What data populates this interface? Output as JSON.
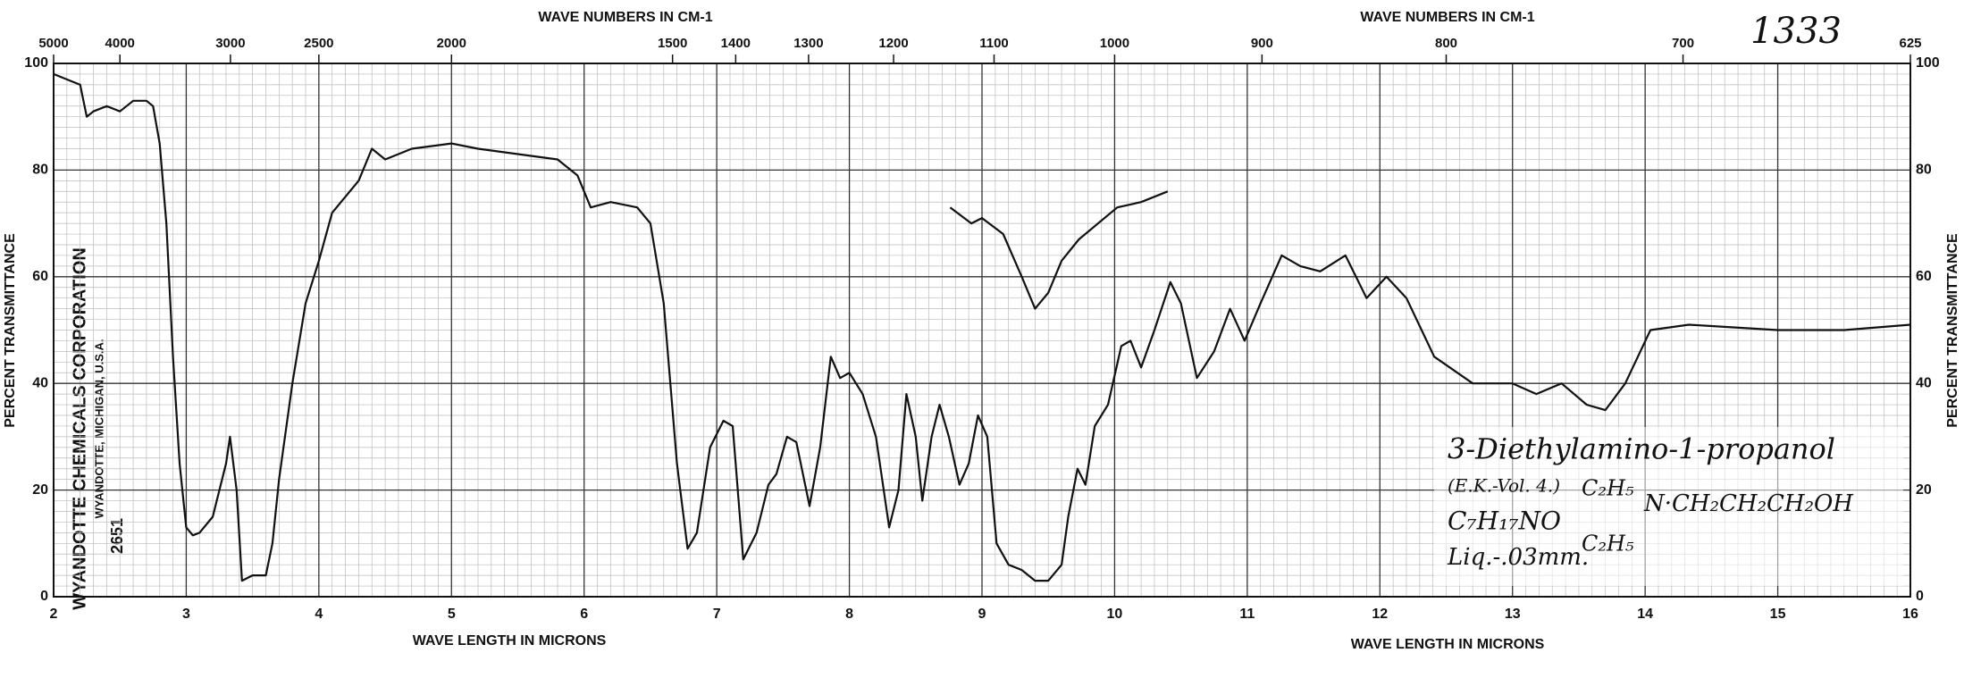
{
  "chart_data": {
    "type": "line",
    "top_axis_label": "WAVE NUMBERS IN CM-1",
    "top_axis_label_2": "WAVE NUMBERS IN CM-1",
    "x_axis_label": "WAVE LENGTH IN MICRONS",
    "x_axis_label_2": "WAVE LENGTH IN MICRONS",
    "y_axis_label": "PERCENT TRANSMITTANCE",
    "y2_axis_label": "PERCENT TRANSMITTANCE",
    "spectrum_number": "1333",
    "compound": "3-Diethylamino-1-propanol",
    "source": "(E.K.-Vol. 4.)",
    "formula": "C₇H₁₇NO",
    "sample": "Liq.-.03mm.",
    "group_1": "C₂H₅",
    "group_2": "C₂H₅",
    "chain": "N·CH₂CH₂CH₂OH",
    "company": "WYANDOTTE CHEMICALS CORPORATION",
    "company_location": "WYANDOTTE, MICHIGAN, U.S.A.",
    "catalog_number": "2651",
    "xlim": [
      2,
      16
    ],
    "xticks": [
      2,
      3,
      4,
      5,
      6,
      7,
      8,
      9,
      10,
      11,
      12,
      13,
      14,
      15,
      16
    ],
    "x2ticks": [
      5000,
      4000,
      3000,
      2500,
      2000,
      1500,
      1400,
      1300,
      1200,
      1100,
      1000,
      900,
      800,
      700,
      625
    ],
    "ylim": [
      0,
      100
    ],
    "yticks": [
      0,
      20,
      40,
      60,
      80,
      100
    ],
    "grid": true,
    "series": [
      {
        "color": "#111111",
        "x": [
          2.0,
          2.1,
          2.2,
          2.25,
          2.3,
          2.4,
          2.5,
          2.6,
          2.7,
          2.75,
          2.8,
          2.85,
          2.9,
          2.95,
          3.0,
          3.05,
          3.1,
          3.2,
          3.3,
          3.33,
          3.38,
          3.42,
          3.5,
          3.6,
          3.65,
          3.7,
          3.8,
          3.9,
          4.0,
          4.1,
          4.2,
          4.3,
          4.4,
          4.5,
          4.7,
          5.0,
          5.2,
          5.5,
          5.8,
          5.95,
          6.0,
          6.05,
          6.2,
          6.4,
          6.5,
          6.6,
          6.7,
          6.78,
          6.85,
          6.95,
          7.05,
          7.12,
          7.2,
          7.3,
          7.39,
          7.45,
          7.53,
          7.6,
          7.7,
          7.78,
          7.86,
          7.93,
          8.0,
          8.1,
          8.2,
          8.3,
          8.37,
          8.43,
          8.5,
          8.55,
          8.62,
          8.68,
          8.75,
          8.83,
          8.9,
          8.97,
          9.04,
          9.11,
          9.2,
          9.3,
          9.4,
          9.5,
          9.6,
          9.65,
          9.72,
          9.78,
          9.85,
          9.95,
          10.05,
          10.12,
          10.2,
          10.3,
          10.42,
          10.5,
          10.62,
          10.75,
          10.87,
          10.98,
          11.1,
          11.26,
          11.4,
          11.55,
          11.74,
          11.9,
          12.05,
          12.2,
          12.41,
          12.7,
          13.0,
          13.18,
          13.37,
          13.56,
          13.7,
          13.85,
          14.04,
          14.33,
          15.0,
          15.5,
          16.0
        ],
        "values": [
          98,
          97,
          96,
          90,
          91,
          92,
          91,
          93,
          93,
          92,
          85,
          70,
          45,
          25,
          13,
          11.5,
          12,
          15,
          25,
          30,
          20,
          3,
          4,
          4,
          10,
          22,
          40,
          55,
          63,
          72,
          75,
          78,
          84,
          82,
          84,
          85,
          84,
          83,
          82,
          79,
          76,
          73,
          74,
          73,
          70,
          55,
          25,
          9,
          12,
          28,
          33,
          32,
          7,
          12,
          21,
          23,
          30,
          29,
          17,
          28,
          45,
          41,
          42,
          38,
          30,
          13,
          20,
          38,
          30,
          18,
          30,
          36,
          30,
          21,
          25,
          34,
          30,
          10,
          6,
          5,
          3,
          3,
          6,
          15,
          24,
          21,
          32,
          36,
          47,
          48,
          43,
          50,
          59,
          55,
          41,
          46,
          54,
          48,
          55,
          64,
          62,
          61,
          64,
          56,
          60,
          56,
          45,
          40,
          40,
          38,
          40,
          36,
          35,
          40,
          50,
          51,
          50,
          50,
          51
        ]
      },
      {
        "color": "#111111",
        "x": [
          8.76,
          8.92,
          9.0,
          9.16,
          9.3,
          9.4,
          9.5,
          9.6,
          9.73,
          10.02,
          10.2,
          10.4
        ],
        "values": [
          73,
          70,
          71,
          68,
          60,
          54,
          57,
          63,
          67,
          73,
          74,
          76
        ]
      }
    ]
  }
}
